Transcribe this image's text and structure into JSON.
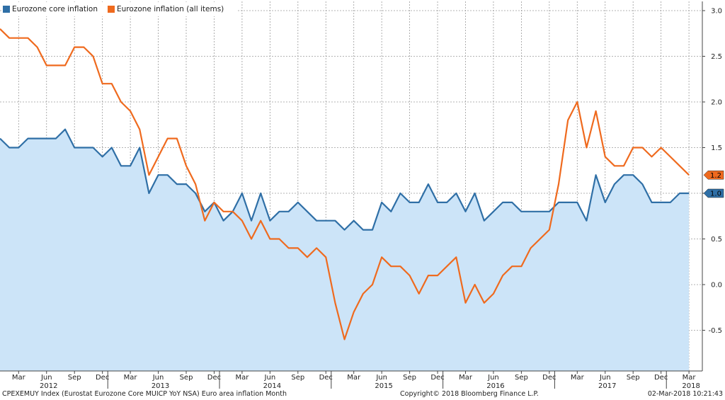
{
  "chart_data": {
    "type": "line",
    "title": "",
    "legend": {
      "placement": "top-left"
    },
    "grid": true,
    "ylim": [
      -1.0,
      3.1
    ],
    "yticks": [
      -0.5,
      0.0,
      0.5,
      1.0,
      1.5,
      2.0,
      2.5,
      3.0
    ],
    "ytick_labels": [
      "-0.5",
      "0.0",
      "0.5",
      "1.0",
      "1.5",
      "2.0",
      "2.5",
      "3.0"
    ],
    "x_start": "2012-01",
    "month_labels": [
      {
        "m": 2,
        "label": "Mar"
      },
      {
        "m": 5,
        "label": "Jun"
      },
      {
        "m": 8,
        "label": "Sep"
      },
      {
        "m": 11,
        "label": "Dec"
      },
      {
        "m": 14,
        "label": "Mar"
      },
      {
        "m": 17,
        "label": "Jun"
      },
      {
        "m": 20,
        "label": "Sep"
      },
      {
        "m": 23,
        "label": "Dec"
      },
      {
        "m": 26,
        "label": "Mar"
      },
      {
        "m": 29,
        "label": "Jun"
      },
      {
        "m": 32,
        "label": "Sep"
      },
      {
        "m": 35,
        "label": "Dec"
      },
      {
        "m": 38,
        "label": "Mar"
      },
      {
        "m": 41,
        "label": "Jun"
      },
      {
        "m": 44,
        "label": "Sep"
      },
      {
        "m": 47,
        "label": "Dec"
      },
      {
        "m": 50,
        "label": "Mar"
      },
      {
        "m": 53,
        "label": "Jun"
      },
      {
        "m": 56,
        "label": "Sep"
      },
      {
        "m": 59,
        "label": "Dec"
      },
      {
        "m": 62,
        "label": "Mar"
      },
      {
        "m": 65,
        "label": "Jun"
      },
      {
        "m": 68,
        "label": "Sep"
      },
      {
        "m": 71,
        "label": "Dec"
      },
      {
        "m": 74,
        "label": "Mar"
      }
    ],
    "year_labels": [
      {
        "m": 5,
        "label": "2012"
      },
      {
        "m": 17,
        "label": "2013"
      },
      {
        "m": 29,
        "label": "2014"
      },
      {
        "m": 41,
        "label": "2015"
      },
      {
        "m": 53,
        "label": "2016"
      },
      {
        "m": 65,
        "label": "2017"
      },
      {
        "m": 74,
        "label": "2018"
      }
    ],
    "series": [
      {
        "name": "Eurozone core inflation",
        "color": "#2f6fa6",
        "fill": "#cce4f8",
        "last_label": "1.0",
        "values": [
          1.6,
          1.5,
          1.5,
          1.6,
          1.6,
          1.6,
          1.6,
          1.7,
          1.5,
          1.5,
          1.5,
          1.4,
          1.5,
          1.3,
          1.3,
          1.5,
          1.0,
          1.2,
          1.2,
          1.1,
          1.1,
          1.0,
          0.8,
          0.9,
          0.7,
          0.8,
          1.0,
          0.7,
          1.0,
          0.7,
          0.8,
          0.8,
          0.9,
          0.8,
          0.7,
          0.7,
          0.7,
          0.6,
          0.7,
          0.6,
          0.6,
          0.9,
          0.8,
          1.0,
          0.9,
          0.9,
          1.1,
          0.9,
          0.9,
          1.0,
          0.8,
          1.0,
          0.7,
          0.8,
          0.9,
          0.9,
          0.8,
          0.8,
          0.8,
          0.8,
          0.9,
          0.9,
          0.9,
          0.7,
          1.2,
          0.9,
          1.1,
          1.2,
          1.2,
          1.1,
          0.9,
          0.9,
          0.9,
          1.0,
          1.0
        ]
      },
      {
        "name": "Eurozone inflation (all items)",
        "color": "#ef6a1e",
        "last_label": "1.2",
        "values": [
          2.8,
          2.7,
          2.7,
          2.7,
          2.6,
          2.4,
          2.4,
          2.4,
          2.6,
          2.6,
          2.5,
          2.2,
          2.2,
          2.0,
          1.9,
          1.7,
          1.2,
          1.4,
          1.6,
          1.6,
          1.3,
          1.1,
          0.7,
          0.9,
          0.8,
          0.8,
          0.7,
          0.5,
          0.7,
          0.5,
          0.5,
          0.4,
          0.4,
          0.3,
          0.4,
          0.3,
          -0.2,
          -0.6,
          -0.3,
          -0.1,
          0.0,
          0.3,
          0.2,
          0.2,
          0.1,
          -0.1,
          0.1,
          0.1,
          0.2,
          0.3,
          -0.2,
          0.0,
          -0.2,
          -0.1,
          0.1,
          0.2,
          0.2,
          0.4,
          0.5,
          0.6,
          1.1,
          1.8,
          2.0,
          1.5,
          1.9,
          1.4,
          1.3,
          1.3,
          1.5,
          1.5,
          1.4,
          1.5,
          1.4,
          1.3,
          1.2
        ]
      }
    ]
  },
  "footer": {
    "left": "CPEXEMUY Index (Eurostat Eurozone Core MUICP YoY NSA) Euro area inflation  Month",
    "center": "Copyright© 2018 Bloomberg Finance L.P.",
    "right": "02-Mar-2018 10:21:43"
  }
}
